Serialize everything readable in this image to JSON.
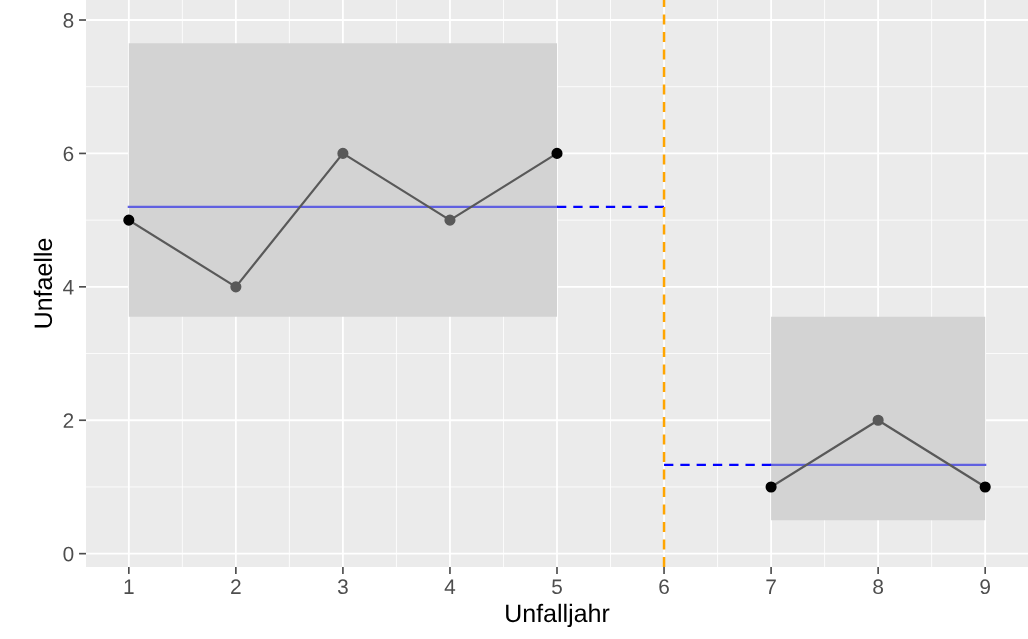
{
  "chart_data": {
    "type": "line",
    "xlabel": "Unfalljahr",
    "ylabel": "Unfaelle",
    "x": [
      1,
      2,
      3,
      4,
      5,
      6,
      7,
      8,
      9
    ],
    "series": [
      {
        "color": "#6060e0",
        "x": [
          1,
          5
        ],
        "values": [
          5.2,
          5.2
        ],
        "lower": [
          3.55,
          3.55
        ],
        "upper": [
          7.65,
          7.65
        ],
        "line_style": "solid",
        "marker": "none"
      },
      {
        "color": "#6060e0",
        "x": [
          7,
          9
        ],
        "values": [
          1.33,
          1.33
        ],
        "lower": [
          0.5,
          0.5
        ],
        "upper": [
          3.55,
          3.55
        ],
        "line_style": "solid",
        "marker": "none"
      },
      {
        "color": "#0000ff",
        "x": [
          5,
          6
        ],
        "values": [
          5.2,
          5.2
        ],
        "line_style": "dashed",
        "marker": "none"
      },
      {
        "color": "#0000ff",
        "x": [
          6,
          7
        ],
        "values": [
          1.33,
          1.33
        ],
        "line_style": "dashed",
        "marker": "none"
      },
      {
        "color": "#595959",
        "values": [
          5,
          4,
          6,
          5,
          6,
          null,
          1,
          2,
          1
        ],
        "colors": [
          "#000000",
          "#595959",
          "#595959",
          "#595959",
          "#000000",
          null,
          "#000000",
          "#595959",
          "#000000"
        ],
        "line_style": "solid",
        "marker": "circle"
      }
    ],
    "ref_lines": [
      {
        "axis": "x",
        "value": 6,
        "color": "#ffa500",
        "line_style": "dashed"
      }
    ],
    "xlim": [
      0.6,
      9.4
    ],
    "ylim": [
      -0.2,
      8.3
    ],
    "xticks": [
      1,
      2,
      3,
      4,
      5,
      6,
      7,
      8,
      9
    ],
    "yticks": [
      0,
      2,
      4,
      6,
      8
    ],
    "grid": true
  }
}
